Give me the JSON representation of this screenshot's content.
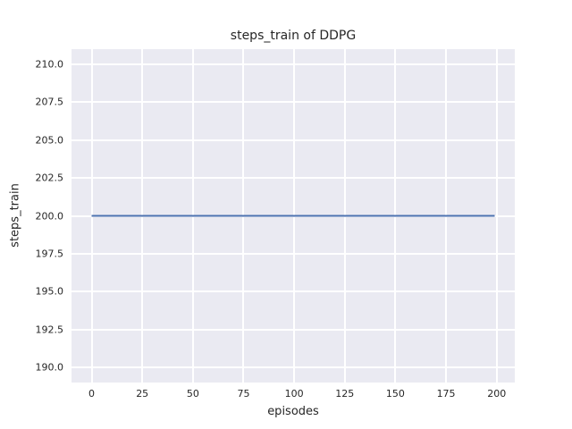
{
  "chart_data": {
    "type": "line",
    "title": "steps_train of DDPG",
    "xlabel": "episodes",
    "ylabel": "steps_train",
    "x_ticks": [
      0,
      25,
      50,
      75,
      100,
      125,
      150,
      175,
      200
    ],
    "x_tick_labels": [
      "0",
      "25",
      "50",
      "75",
      "100",
      "125",
      "150",
      "175",
      "200"
    ],
    "y_ticks": [
      210.0,
      207.5,
      205.0,
      202.5,
      200.0,
      197.5,
      195.0,
      192.5,
      190.0
    ],
    "y_tick_labels": [
      "210.0",
      "207.5",
      "205.0",
      "202.5",
      "200.0",
      "197.5",
      "195.0",
      "192.5",
      "190.0"
    ],
    "xlim": [
      -9.95,
      208.95
    ],
    "ylim": [
      189.0,
      211.0
    ],
    "grid": true,
    "legend": "none",
    "series": [
      {
        "name": "steps_train",
        "color": "#4c72b0",
        "x": [
          0,
          199
        ],
        "y": [
          200,
          200
        ],
        "note": "constant value 200 across all 200 episodes"
      }
    ]
  },
  "colors": {
    "figure_bg": "#ffffff",
    "plot_bg": "#eaeaf2",
    "grid": "#ffffff",
    "line": "#4c72b0",
    "text": "#262626"
  }
}
